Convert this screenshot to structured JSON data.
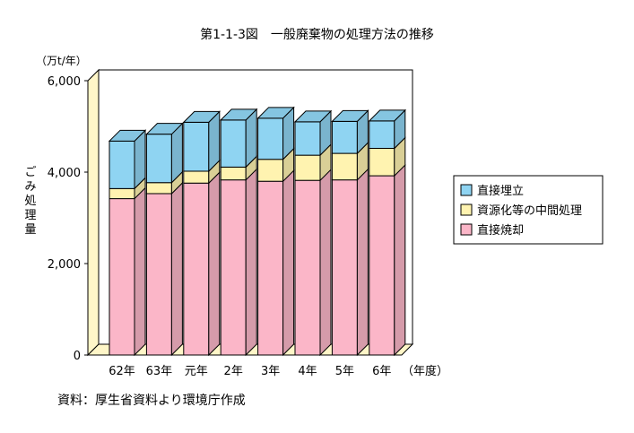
{
  "chart_data": {
    "type": "bar",
    "stacked": true,
    "three_d": true,
    "title": "第1-1-3図　一般廃棄物の処理方法の推移",
    "ylabel": "ごみ処理量",
    "yunit": "（万t/年）",
    "xunit": "（年度）",
    "ylim": [
      0,
      6000
    ],
    "yticks": [
      0,
      2000,
      4000,
      6000
    ],
    "ytick_labels": [
      "0",
      "2,000",
      "4,000",
      "6,000"
    ],
    "categories": [
      "62年",
      "63年",
      "元年",
      "2年",
      "3年",
      "4年",
      "5年",
      "6年"
    ],
    "series": [
      {
        "name": "直接焼却",
        "color": "#fbb6c8",
        "values": [
          3420,
          3530,
          3760,
          3830,
          3800,
          3820,
          3830,
          3920
        ]
      },
      {
        "name": "資源化等の中間処理",
        "color": "#fff3b0",
        "values": [
          220,
          240,
          260,
          280,
          480,
          550,
          580,
          600
        ]
      },
      {
        "name": "直接埋立",
        "color": "#8fd4f2",
        "values": [
          1040,
          1060,
          1070,
          1030,
          900,
          730,
          700,
          600
        ]
      }
    ],
    "legend_order": [
      "直接埋立",
      "資源化等の中間処理",
      "直接焼却"
    ],
    "legend_position": "right",
    "grid": false
  },
  "source": "資料：厚生省資料より環境庁作成"
}
